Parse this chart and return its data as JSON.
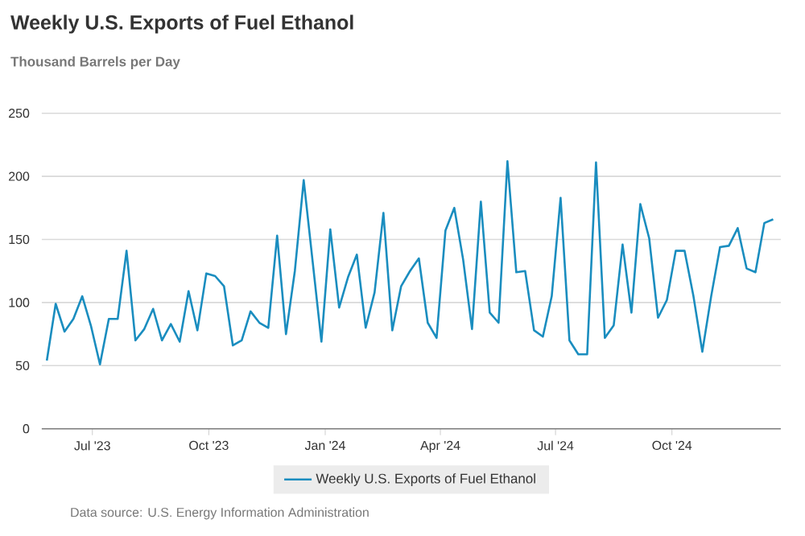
{
  "chart_data": {
    "type": "line",
    "title": "Weekly U.S. Exports of Fuel Ethanol",
    "subtitle": "Thousand Barrels per Day",
    "annotations": [
      "Data source: U.S. Energy Information Administration"
    ],
    "x": [
      "2023-05-26",
      "2023-06-02",
      "2023-06-09",
      "2023-06-16",
      "2023-06-23",
      "2023-06-30",
      "2023-07-07",
      "2023-07-14",
      "2023-07-21",
      "2023-07-28",
      "2023-08-04",
      "2023-08-11",
      "2023-08-18",
      "2023-08-25",
      "2023-09-01",
      "2023-09-08",
      "2023-09-15",
      "2023-09-22",
      "2023-09-29",
      "2023-10-06",
      "2023-10-13",
      "2023-10-20",
      "2023-10-27",
      "2023-11-03",
      "2023-11-10",
      "2023-11-17",
      "2023-11-24",
      "2023-12-01",
      "2023-12-08",
      "2023-12-15",
      "2023-12-22",
      "2023-12-29",
      "2024-01-05",
      "2024-01-12",
      "2024-01-19",
      "2024-01-26",
      "2024-02-02",
      "2024-02-09",
      "2024-02-16",
      "2024-02-23",
      "2024-03-01",
      "2024-03-08",
      "2024-03-15",
      "2024-03-22",
      "2024-03-29",
      "2024-04-05",
      "2024-04-12",
      "2024-04-19",
      "2024-04-26",
      "2024-05-03",
      "2024-05-10",
      "2024-05-17",
      "2024-05-24",
      "2024-05-31",
      "2024-06-07",
      "2024-06-14",
      "2024-06-21",
      "2024-06-28",
      "2024-07-05",
      "2024-07-12",
      "2024-07-19",
      "2024-07-26",
      "2024-08-02",
      "2024-08-09",
      "2024-08-16",
      "2024-08-23",
      "2024-08-30",
      "2024-09-06",
      "2024-09-13",
      "2024-09-20",
      "2024-09-27",
      "2024-10-04",
      "2024-10-11",
      "2024-10-18",
      "2024-10-25",
      "2024-11-01",
      "2024-11-08",
      "2024-11-15",
      "2024-11-22",
      "2024-11-29",
      "2024-12-06",
      "2024-12-13",
      "2024-12-20"
    ],
    "series": [
      {
        "name": "Weekly U.S. Exports of Fuel Ethanol",
        "color": "#1a8dbf",
        "values": [
          54,
          99,
          77,
          87,
          105,
          81,
          51,
          87,
          87,
          141,
          70,
          79,
          95,
          70,
          83,
          69,
          109,
          78,
          123,
          121,
          113,
          66,
          70,
          93,
          84,
          80,
          153,
          75,
          125,
          197,
          133,
          69,
          158,
          96,
          120,
          138,
          80,
          108,
          171,
          78,
          113,
          125,
          135,
          84,
          72,
          157,
          175,
          134,
          79,
          180,
          92,
          84,
          212,
          124,
          125,
          78,
          73,
          105,
          183,
          70,
          59,
          59,
          211,
          72,
          82,
          146,
          92,
          178,
          151,
          88,
          102,
          141,
          141,
          105,
          61,
          105,
          144,
          145,
          159,
          127,
          124,
          163,
          166
        ]
      }
    ],
    "xlim": [
      "2023-05-22",
      "2024-12-26"
    ],
    "ylim": [
      0,
      250
    ],
    "xticks": [
      {
        "value": "2023-07-01",
        "label": "Jul '23"
      },
      {
        "value": "2023-10-01",
        "label": "Oct '23"
      },
      {
        "value": "2024-01-01",
        "label": "Jan '24"
      },
      {
        "value": "2024-04-01",
        "label": "Apr '24"
      },
      {
        "value": "2024-07-01",
        "label": "Jul '24"
      },
      {
        "value": "2024-10-01",
        "label": "Oct '24"
      }
    ],
    "yticks": [
      0,
      50,
      100,
      150,
      200,
      250
    ],
    "grid": "y",
    "legend": "bottom"
  }
}
